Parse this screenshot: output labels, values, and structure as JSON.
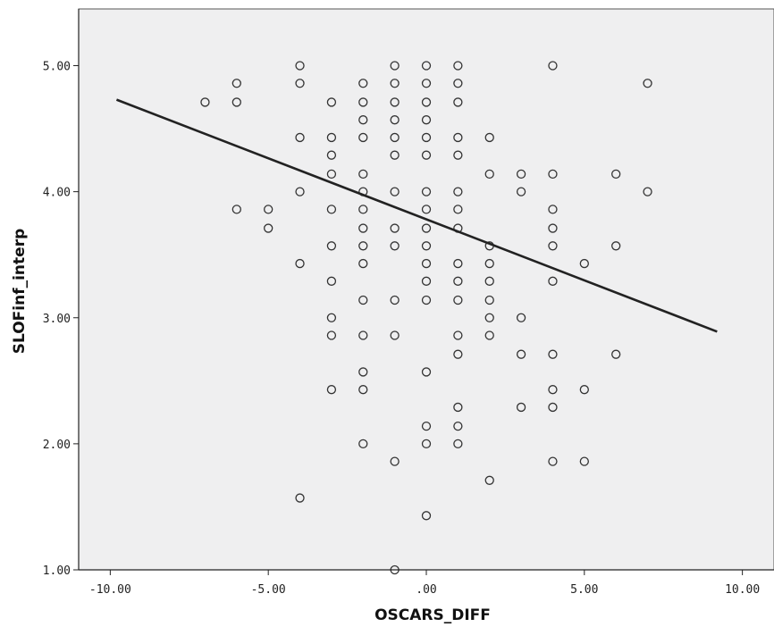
{
  "chart_data": {
    "type": "scatter",
    "title": "",
    "xlabel": "OSCARS_DIFF",
    "ylabel": "SLOFinf_interp",
    "xlim": [
      -11.0,
      11.0
    ],
    "ylim": [
      1.0,
      5.45
    ],
    "x_ticks": [
      -10,
      -5,
      0,
      5,
      10
    ],
    "x_tick_labels": [
      "-10.00",
      "-5.00",
      ".00",
      "5.00",
      "10.00"
    ],
    "y_ticks": [
      1,
      2,
      3,
      4,
      5
    ],
    "y_tick_labels": [
      "1.00",
      "2.00",
      "3.00",
      "4.00",
      "5.00"
    ],
    "grid": false,
    "plot_background": "#efeff0",
    "marker_color": "#333333",
    "line_color": "#222222",
    "points": [
      {
        "x": -7,
        "y": 4.71
      },
      {
        "x": -6,
        "y": 4.86
      },
      {
        "x": -6,
        "y": 4.71
      },
      {
        "x": -6,
        "y": 3.86
      },
      {
        "x": -5,
        "y": 3.86
      },
      {
        "x": -5,
        "y": 3.71
      },
      {
        "x": -4,
        "y": 5.0
      },
      {
        "x": -4,
        "y": 4.86
      },
      {
        "x": -4,
        "y": 4.43
      },
      {
        "x": -4,
        "y": 4.0
      },
      {
        "x": -4,
        "y": 3.43
      },
      {
        "x": -4,
        "y": 1.57
      },
      {
        "x": -3,
        "y": 4.71
      },
      {
        "x": -3,
        "y": 4.43
      },
      {
        "x": -3,
        "y": 4.29
      },
      {
        "x": -3,
        "y": 4.14
      },
      {
        "x": -3,
        "y": 3.86
      },
      {
        "x": -3,
        "y": 3.57
      },
      {
        "x": -3,
        "y": 3.29
      },
      {
        "x": -3,
        "y": 3.0
      },
      {
        "x": -3,
        "y": 2.86
      },
      {
        "x": -3,
        "y": 2.43
      },
      {
        "x": -2,
        "y": 4.86
      },
      {
        "x": -2,
        "y": 4.71
      },
      {
        "x": -2,
        "y": 4.57
      },
      {
        "x": -2,
        "y": 4.43
      },
      {
        "x": -2,
        "y": 4.14
      },
      {
        "x": -2,
        "y": 4.0
      },
      {
        "x": -2,
        "y": 3.86
      },
      {
        "x": -2,
        "y": 3.71
      },
      {
        "x": -2,
        "y": 3.57
      },
      {
        "x": -2,
        "y": 3.43
      },
      {
        "x": -2,
        "y": 3.14
      },
      {
        "x": -2,
        "y": 2.86
      },
      {
        "x": -2,
        "y": 2.57
      },
      {
        "x": -2,
        "y": 2.43
      },
      {
        "x": -2,
        "y": 2.0
      },
      {
        "x": -1,
        "y": 5.0
      },
      {
        "x": -1,
        "y": 4.86
      },
      {
        "x": -1,
        "y": 4.71
      },
      {
        "x": -1,
        "y": 4.57
      },
      {
        "x": -1,
        "y": 4.43
      },
      {
        "x": -1,
        "y": 4.29
      },
      {
        "x": -1,
        "y": 4.0
      },
      {
        "x": -1,
        "y": 3.71
      },
      {
        "x": -1,
        "y": 3.57
      },
      {
        "x": -1,
        "y": 3.14
      },
      {
        "x": -1,
        "y": 2.86
      },
      {
        "x": -1,
        "y": 1.86
      },
      {
        "x": -1,
        "y": 1.0
      },
      {
        "x": 0,
        "y": 5.0
      },
      {
        "x": 0,
        "y": 4.86
      },
      {
        "x": 0,
        "y": 4.71
      },
      {
        "x": 0,
        "y": 4.57
      },
      {
        "x": 0,
        "y": 4.43
      },
      {
        "x": 0,
        "y": 4.29
      },
      {
        "x": 0,
        "y": 4.0
      },
      {
        "x": 0,
        "y": 3.86
      },
      {
        "x": 0,
        "y": 3.71
      },
      {
        "x": 0,
        "y": 3.57
      },
      {
        "x": 0,
        "y": 3.43
      },
      {
        "x": 0,
        "y": 3.29
      },
      {
        "x": 0,
        "y": 3.14
      },
      {
        "x": 0,
        "y": 2.57
      },
      {
        "x": 0,
        "y": 2.14
      },
      {
        "x": 0,
        "y": 2.0
      },
      {
        "x": 0,
        "y": 1.43
      },
      {
        "x": 1,
        "y": 5.0
      },
      {
        "x": 1,
        "y": 4.86
      },
      {
        "x": 1,
        "y": 4.71
      },
      {
        "x": 1,
        "y": 4.43
      },
      {
        "x": 1,
        "y": 4.29
      },
      {
        "x": 1,
        "y": 4.0
      },
      {
        "x": 1,
        "y": 3.86
      },
      {
        "x": 1,
        "y": 3.71
      },
      {
        "x": 1,
        "y": 3.43
      },
      {
        "x": 1,
        "y": 3.29
      },
      {
        "x": 1,
        "y": 3.14
      },
      {
        "x": 1,
        "y": 2.86
      },
      {
        "x": 1,
        "y": 2.71
      },
      {
        "x": 1,
        "y": 2.29
      },
      {
        "x": 1,
        "y": 2.14
      },
      {
        "x": 1,
        "y": 2.0
      },
      {
        "x": 2,
        "y": 4.43
      },
      {
        "x": 2,
        "y": 4.14
      },
      {
        "x": 2,
        "y": 3.57
      },
      {
        "x": 2,
        "y": 3.43
      },
      {
        "x": 2,
        "y": 3.29
      },
      {
        "x": 2,
        "y": 3.14
      },
      {
        "x": 2,
        "y": 3.0
      },
      {
        "x": 2,
        "y": 2.86
      },
      {
        "x": 2,
        "y": 1.71
      },
      {
        "x": 3,
        "y": 4.14
      },
      {
        "x": 3,
        "y": 4.0
      },
      {
        "x": 3,
        "y": 3.0
      },
      {
        "x": 3,
        "y": 2.71
      },
      {
        "x": 3,
        "y": 2.29
      },
      {
        "x": 4,
        "y": 5.0
      },
      {
        "x": 4,
        "y": 4.14
      },
      {
        "x": 4,
        "y": 3.86
      },
      {
        "x": 4,
        "y": 3.71
      },
      {
        "x": 4,
        "y": 3.57
      },
      {
        "x": 4,
        "y": 3.29
      },
      {
        "x": 4,
        "y": 2.71
      },
      {
        "x": 4,
        "y": 2.43
      },
      {
        "x": 4,
        "y": 2.29
      },
      {
        "x": 4,
        "y": 1.86
      },
      {
        "x": 5,
        "y": 3.43
      },
      {
        "x": 5,
        "y": 2.43
      },
      {
        "x": 5,
        "y": 1.86
      },
      {
        "x": 6,
        "y": 4.14
      },
      {
        "x": 6,
        "y": 3.57
      },
      {
        "x": 6,
        "y": 2.71
      },
      {
        "x": 7,
        "y": 4.86
      },
      {
        "x": 7,
        "y": 4.0
      }
    ],
    "fit_line": {
      "x": [
        -9.8,
        9.2
      ],
      "y": [
        4.73,
        2.89
      ]
    }
  }
}
